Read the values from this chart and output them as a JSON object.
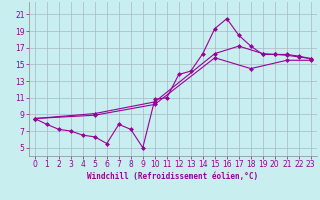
{
  "bg_color": "#c8eef0",
  "line_color": "#990099",
  "grid_color": "#a8b8c8",
  "xlabel": "Windchill (Refroidissement éolien,°C)",
  "xlim": [
    -0.5,
    23.5
  ],
  "ylim": [
    4.0,
    22.5
  ],
  "xticks": [
    0,
    1,
    2,
    3,
    4,
    5,
    6,
    7,
    8,
    9,
    10,
    11,
    12,
    13,
    14,
    15,
    16,
    17,
    18,
    19,
    20,
    21,
    22,
    23
  ],
  "yticks": [
    5,
    7,
    9,
    11,
    13,
    15,
    17,
    19,
    21
  ],
  "series": [
    {
      "x": [
        0,
        1,
        2,
        3,
        4,
        5,
        6,
        7,
        8,
        9,
        10,
        11,
        12,
        13,
        14,
        15,
        16,
        17,
        18,
        19,
        20,
        21,
        22,
        23
      ],
      "y": [
        8.5,
        7.8,
        7.2,
        7.0,
        6.5,
        6.3,
        5.5,
        7.8,
        7.2,
        5.0,
        10.8,
        11.0,
        13.8,
        14.2,
        16.3,
        19.3,
        20.5,
        18.5,
        17.2,
        16.2,
        16.2,
        16.1,
        15.9,
        15.7
      ]
    },
    {
      "x": [
        0,
        23
      ],
      "y": [
        8.5,
        15.5
      ]
    },
    {
      "x": [
        0,
        23
      ],
      "y": [
        8.5,
        15.5
      ]
    }
  ],
  "line2_x": [
    0,
    5,
    10,
    15,
    17,
    19,
    20,
    21,
    22,
    23
  ],
  "line2_y": [
    8.5,
    9.1,
    10.5,
    16.3,
    17.2,
    16.3,
    16.2,
    16.2,
    16.0,
    15.7
  ],
  "line3_x": [
    0,
    5,
    10,
    15,
    18,
    21,
    23
  ],
  "line3_y": [
    8.5,
    8.9,
    10.2,
    15.8,
    14.5,
    15.5,
    15.5
  ]
}
